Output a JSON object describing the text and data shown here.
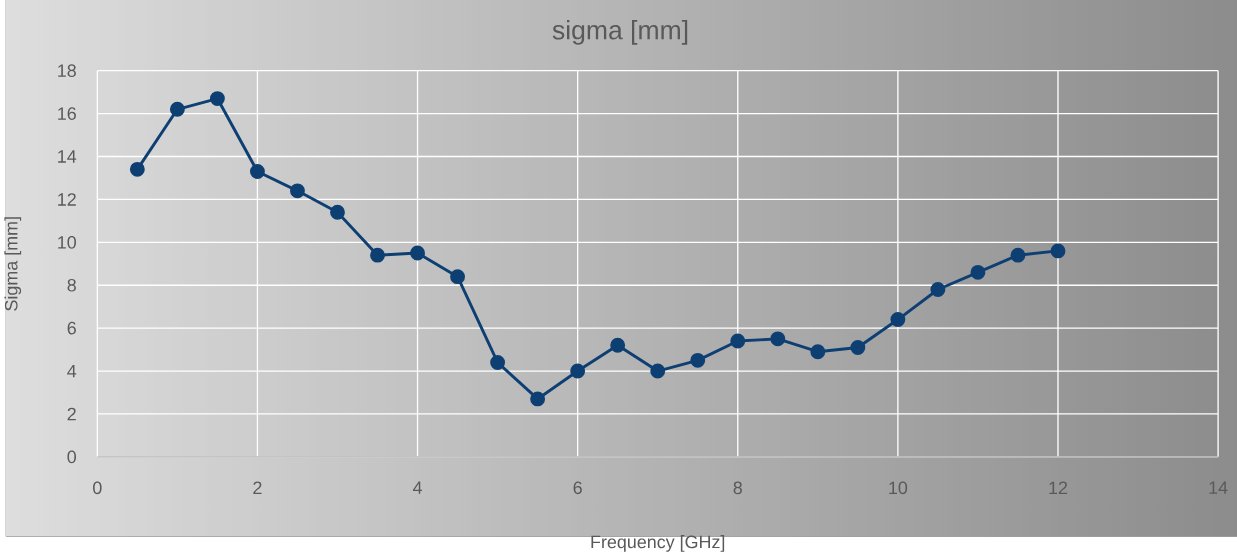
{
  "chart_data": {
    "type": "line",
    "title": "sigma [mm]",
    "xlabel": "Frequency [GHz]",
    "ylabel": "Sigma [mm]",
    "x": [
      0.5,
      1,
      1.5,
      2,
      2.5,
      3,
      3.5,
      4,
      4.5,
      5,
      5.5,
      6,
      6.5,
      7,
      7.5,
      8,
      8.5,
      9,
      9.5,
      10,
      10.5,
      11,
      11.5,
      12
    ],
    "series": [
      {
        "color": "#0e3f73",
        "values": [
          13.4,
          16.2,
          16.7,
          13.3,
          12.4,
          11.4,
          9.4,
          9.5,
          8.4,
          4.4,
          2.7,
          4.0,
          5.2,
          4.0,
          4.5,
          5.4,
          5.5,
          4.9,
          5.1,
          6.4,
          7.8,
          8.6,
          9.4,
          9.6
        ]
      }
    ],
    "xlim": [
      0,
      14
    ],
    "xticks": [
      0,
      2,
      4,
      6,
      8,
      10,
      12,
      14
    ],
    "ylim": [
      0,
      18
    ],
    "yticks": [
      0,
      2,
      4,
      6,
      8,
      10,
      12,
      14,
      16,
      18
    ],
    "grid": true,
    "marker": "circle",
    "line_style": "solid"
  }
}
